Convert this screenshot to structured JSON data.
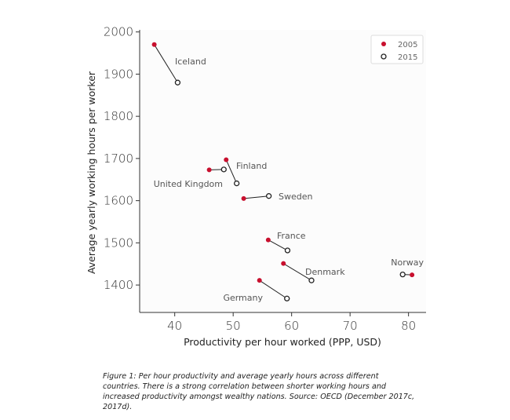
{
  "chart_data": {
    "type": "scatter",
    "title": "",
    "xlabel": "Productivity per hour worked (PPP, USD)",
    "ylabel": "Average yearly working hours per worker",
    "xlim": [
      34,
      83
    ],
    "ylim": [
      1335,
      2005
    ],
    "xticks": [
      40,
      50,
      60,
      70,
      80
    ],
    "yticks": [
      1400,
      1500,
      1600,
      1700,
      1800,
      1900,
      2000
    ],
    "grid": false,
    "legend_position": "top-right",
    "series": [
      {
        "name": "2005",
        "color": "#c8102e",
        "marker": "filled-circle"
      },
      {
        "name": "2015",
        "color": "#222222",
        "marker": "hollow-circle"
      }
    ],
    "points": [
      {
        "country": "Iceland",
        "x2005": 36.5,
        "y2005": 1970,
        "x2015": 40.5,
        "y2015": 1880
      },
      {
        "country": "Finland",
        "x2005": 48.8,
        "y2005": 1697,
        "x2015": 50.6,
        "y2015": 1641
      },
      {
        "country": "United Kingdom",
        "x2005": 45.9,
        "y2005": 1673,
        "x2015": 48.4,
        "y2015": 1674
      },
      {
        "country": "Sweden",
        "x2005": 51.8,
        "y2005": 1605,
        "x2015": 56.1,
        "y2015": 1611
      },
      {
        "country": "France",
        "x2005": 56.0,
        "y2005": 1507,
        "x2015": 59.3,
        "y2015": 1482
      },
      {
        "country": "Denmark",
        "x2005": 58.6,
        "y2005": 1451,
        "x2015": 63.4,
        "y2015": 1411
      },
      {
        "country": "Norway",
        "x2005": 80.6,
        "y2005": 1424,
        "x2015": 79.0,
        "y2015": 1425
      },
      {
        "country": "Germany",
        "x2005": 54.5,
        "y2005": 1411,
        "x2015": 59.2,
        "y2015": 1368
      }
    ]
  },
  "caption": "Figure 1: Per hour productivity and average yearly hours across different countries. There is a strong correlation between shorter working hours and increased productivity amongst wealthy nations. Source: OECD (December 2017c, 2017d).",
  "colors": {
    "series_2005": "#c8102e",
    "series_2015": "#222222",
    "plot_background": "#fcfcfc"
  }
}
